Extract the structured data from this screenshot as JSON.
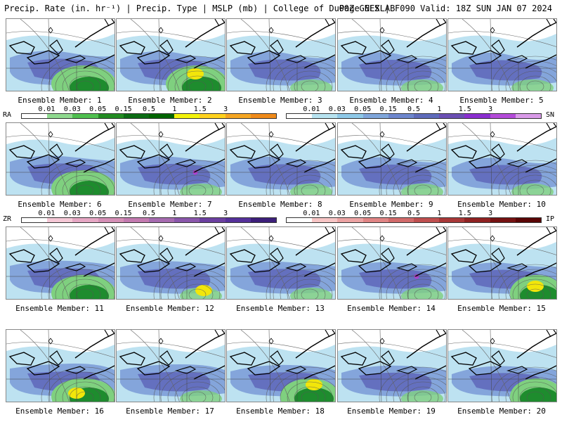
{
  "header": {
    "left": "Precip. Rate (in. hr⁻¹) | Precip. Type | MSLP (mb) | College of DuPage NEXLAB",
    "right": "00Z GEFS | F090 Valid: 18Z SUN JAN 07 2024"
  },
  "members": [
    "Ensemble Member: 1",
    "Ensemble Member: 2",
    "Ensemble Member: 3",
    "Ensemble Member: 4",
    "Ensemble Member: 5",
    "Ensemble Member: 6",
    "Ensemble Member: 7",
    "Ensemble Member: 8",
    "Ensemble Member: 9",
    "Ensemble Member: 10",
    "Ensemble Member: 11",
    "Ensemble Member: 12",
    "Ensemble Member: 13",
    "Ensemble Member: 14",
    "Ensemble Member: 15",
    "Ensemble Member: 16",
    "Ensemble Member: 17",
    "Ensemble Member: 18",
    "Ensemble Member: 19",
    "Ensemble Member: 20"
  ],
  "legends": {
    "rain": {
      "label": "RA",
      "ticks": [
        "0.01",
        "0.03",
        "0.05",
        "0.15",
        "0.5",
        "1",
        "1.5",
        "3"
      ],
      "colors": [
        "#ffffff",
        "#8fd98f",
        "#4fbf4f",
        "#228b22",
        "#0b6b14",
        "#006400",
        "#f2f20a",
        "#ffd21e",
        "#f5a623",
        "#ef8a1a"
      ]
    },
    "snow": {
      "label": "SN",
      "ticks": [
        "0.01",
        "0.03",
        "0.05",
        "0.15",
        "0.5",
        "1",
        "1.5",
        "3"
      ],
      "colors": [
        "#ffffff",
        "#b7e3f0",
        "#8ec9e8",
        "#7fa6db",
        "#6d86cd",
        "#5e6bbb",
        "#6b4fb3",
        "#8a2ecf",
        "#b44bd9",
        "#d99ae8"
      ]
    },
    "freezing_rain": {
      "label": "ZR",
      "ticks": [
        "0.01",
        "0.03",
        "0.05",
        "0.15",
        "0.5",
        "1",
        "1.5",
        "3"
      ],
      "colors": [
        "#ffffff",
        "#f5c8d6",
        "#e6a7c4",
        "#d58fb6",
        "#c37ab0",
        "#a66bb0",
        "#8a57ab",
        "#6b3fa0",
        "#55309a",
        "#3d1f7a"
      ]
    },
    "ice_pellets": {
      "label": "IP",
      "ticks": [
        "0.01",
        "0.03",
        "0.05",
        "0.15",
        "0.5",
        "1",
        "1.5",
        "3"
      ],
      "colors": [
        "#ffffff",
        "#f7c5c5",
        "#eca3a3",
        "#e08585",
        "#d16a6a",
        "#bf4f4f",
        "#a83838",
        "#8f2222",
        "#751212",
        "#5a0505"
      ]
    }
  },
  "colors": {
    "snow_light": "#b9e0f0",
    "snow_mid": "#7d9fd8",
    "snow_heavy": "#5a5fb5",
    "rain_light": "#7fd07f",
    "rain_heavy": "#1e8c2e",
    "mix_yellow": "#f2e60a",
    "zr_purple": "#b040d0"
  }
}
